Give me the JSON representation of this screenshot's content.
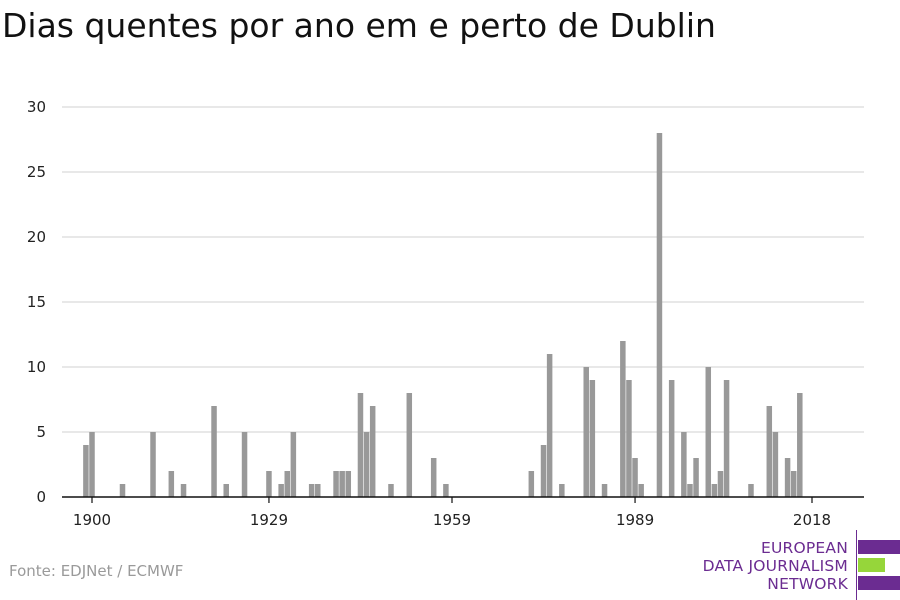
{
  "header": {
    "title": "Dias quentes por ano em e perto de Dublin"
  },
  "footer": {
    "source": "Fonte: EDJNet / ECMWF"
  },
  "logo": {
    "line1": "EUROPEAN",
    "line2": "DATA JOURNALISM",
    "line3": "NETWORK",
    "colors": {
      "purple": "#6b2c91",
      "green": "#96d63a"
    }
  },
  "colors": {
    "bar": "#999999",
    "grid": "#d9d9d9",
    "axis": "#111111"
  },
  "chart_data": {
    "type": "bar",
    "title": "Dias quentes por ano em e perto de Dublin",
    "xlabel": "",
    "ylabel": "",
    "ylim": [
      0,
      30
    ],
    "yticks": [
      0,
      5,
      10,
      15,
      20,
      25,
      30
    ],
    "xticks": [
      1900,
      1929,
      1959,
      1989,
      2018
    ],
    "grid": "horizontal",
    "x": [
      1899,
      1900,
      1905,
      1910,
      1913,
      1915,
      1920,
      1922,
      1925,
      1929,
      1931,
      1932,
      1933,
      1936,
      1937,
      1940,
      1941,
      1942,
      1944,
      1945,
      1946,
      1949,
      1952,
      1956,
      1958,
      1972,
      1974,
      1975,
      1977,
      1981,
      1982,
      1984,
      1987,
      1988,
      1989,
      1990,
      1993,
      1995,
      1997,
      1998,
      1999,
      2001,
      2002,
      2003,
      2004,
      2008,
      2011,
      2012,
      2014,
      2015,
      2016
    ],
    "values": [
      4,
      5,
      1,
      5,
      2,
      1,
      7,
      1,
      5,
      2,
      1,
      2,
      5,
      1,
      1,
      2,
      2,
      2,
      8,
      5,
      7,
      1,
      8,
      3,
      1,
      2,
      4,
      11,
      1,
      10,
      9,
      1,
      12,
      9,
      3,
      1,
      28,
      9,
      5,
      1,
      3,
      10,
      1,
      2,
      9,
      1,
      7,
      5,
      3,
      2,
      8
    ]
  }
}
